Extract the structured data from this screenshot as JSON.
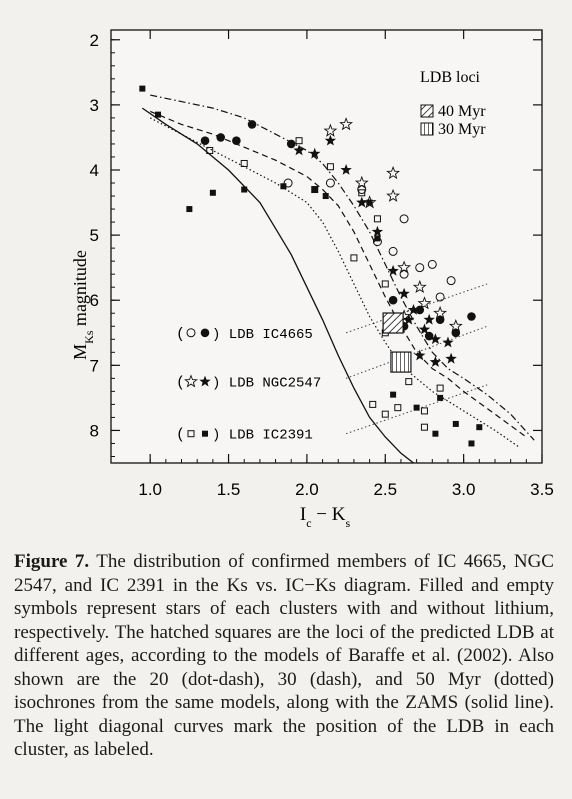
{
  "background_text": [
    "",
    "",
    "",
    "",
    "",
    "",
    "",
    "",
    "",
    "",
    "",
    "",
    "",
    "",
    "",
    ""
  ],
  "chart_data": {
    "type": "scatter",
    "title": "",
    "xlabel": "I_c − K_s",
    "ylabel": "M_Ks magnitude",
    "xlim": [
      0.75,
      3.5
    ],
    "ylim": [
      8.5,
      1.85
    ],
    "y_inverted": true,
    "xticks": [
      "1.0",
      "1.5",
      "2.0",
      "2.5",
      "3.0",
      "3.5"
    ],
    "yticks": [
      "2",
      "3",
      "4",
      "5",
      "6",
      "7",
      "8"
    ],
    "legend_title": "LDB loci",
    "loci": [
      {
        "label": "40 Myr",
        "x": 2.55,
        "y": 6.35,
        "hatch": "diagonal"
      },
      {
        "label": "30 Myr",
        "x": 2.6,
        "y": 6.95,
        "hatch": "grid"
      }
    ],
    "cluster_labels": [
      {
        "label": "(○●) LDB IC4665",
        "y": 6.5
      },
      {
        "label": "(☆★) LDB NGC2547",
        "y": 7.25
      },
      {
        "label": "(□■) LDB IC2391",
        "y": 8.05
      }
    ],
    "series": [
      {
        "name": "IC4665 with Li",
        "symbol": "filled-circle",
        "points": [
          [
            1.35,
            3.55
          ],
          [
            1.45,
            3.5
          ],
          [
            1.55,
            3.55
          ],
          [
            1.65,
            3.3
          ],
          [
            1.9,
            3.6
          ],
          [
            2.55,
            6.0
          ],
          [
            2.62,
            6.4
          ],
          [
            2.72,
            6.15
          ],
          [
            2.85,
            6.3
          ],
          [
            2.95,
            6.5
          ],
          [
            3.05,
            6.25
          ],
          [
            2.78,
            6.55
          ]
        ]
      },
      {
        "name": "IC4665 without Li",
        "symbol": "open-circle",
        "points": [
          [
            1.88,
            4.2
          ],
          [
            2.15,
            4.2
          ],
          [
            2.35,
            4.3
          ],
          [
            2.45,
            5.1
          ],
          [
            2.62,
            4.75
          ],
          [
            2.72,
            5.5
          ],
          [
            2.85,
            5.95
          ],
          [
            2.92,
            5.7
          ],
          [
            2.55,
            5.25
          ],
          [
            2.8,
            5.45
          ],
          [
            2.62,
            5.6
          ]
        ]
      },
      {
        "name": "NGC2547 with Li",
        "symbol": "filled-star",
        "points": [
          [
            1.95,
            3.7
          ],
          [
            2.05,
            3.75
          ],
          [
            2.15,
            3.55
          ],
          [
            2.25,
            4.0
          ],
          [
            2.35,
            4.5
          ],
          [
            2.45,
            4.95
          ],
          [
            2.55,
            5.55
          ],
          [
            2.62,
            5.9
          ],
          [
            2.68,
            6.15
          ],
          [
            2.75,
            6.45
          ],
          [
            2.82,
            6.6
          ],
          [
            2.9,
            6.65
          ],
          [
            2.72,
            6.85
          ],
          [
            2.82,
            6.95
          ],
          [
            2.92,
            6.9
          ],
          [
            2.65,
            6.3
          ],
          [
            2.78,
            6.3
          ]
        ]
      },
      {
        "name": "NGC2547 without Li",
        "symbol": "open-star",
        "points": [
          [
            2.15,
            3.4
          ],
          [
            2.25,
            3.3
          ],
          [
            2.35,
            4.2
          ],
          [
            2.4,
            4.5
          ],
          [
            2.55,
            4.05
          ],
          [
            2.62,
            5.5
          ],
          [
            2.72,
            5.8
          ],
          [
            2.55,
            4.4
          ],
          [
            2.62,
            6.25
          ],
          [
            2.85,
            6.2
          ],
          [
            2.95,
            6.4
          ],
          [
            2.75,
            6.05
          ]
        ]
      },
      {
        "name": "IC2391 with Li",
        "symbol": "filled-square",
        "points": [
          [
            0.95,
            2.75
          ],
          [
            1.05,
            3.15
          ],
          [
            1.25,
            4.6
          ],
          [
            1.4,
            4.35
          ],
          [
            1.6,
            4.3
          ],
          [
            1.85,
            4.25
          ],
          [
            2.05,
            4.3
          ],
          [
            2.12,
            4.4
          ],
          [
            2.4,
            4.5
          ],
          [
            2.45,
            5.05
          ],
          [
            2.55,
            7.45
          ],
          [
            2.7,
            7.65
          ],
          [
            2.85,
            7.5
          ],
          [
            2.95,
            7.9
          ],
          [
            3.05,
            8.2
          ],
          [
            3.1,
            7.95
          ],
          [
            2.82,
            8.05
          ]
        ]
      },
      {
        "name": "IC2391 without Li",
        "symbol": "open-square",
        "points": [
          [
            1.38,
            3.7
          ],
          [
            1.6,
            3.9
          ],
          [
            1.95,
            3.55
          ],
          [
            2.05,
            4.3
          ],
          [
            2.15,
            3.95
          ],
          [
            2.35,
            4.35
          ],
          [
            2.45,
            4.75
          ],
          [
            2.3,
            5.35
          ],
          [
            2.5,
            5.75
          ],
          [
            2.5,
            6.5
          ],
          [
            2.6,
            6.85
          ],
          [
            2.58,
            7.65
          ],
          [
            2.42,
            7.6
          ],
          [
            2.5,
            7.75
          ],
          [
            2.75,
            7.7
          ],
          [
            2.85,
            7.35
          ],
          [
            2.65,
            7.25
          ],
          [
            2.75,
            7.95
          ]
        ]
      }
    ],
    "curves": [
      {
        "name": "20 Myr",
        "style": "dot-dash",
        "points": [
          [
            1.0,
            2.85
          ],
          [
            1.2,
            2.95
          ],
          [
            1.4,
            3.05
          ],
          [
            1.6,
            3.2
          ],
          [
            1.8,
            3.45
          ],
          [
            2.0,
            3.7
          ],
          [
            2.1,
            3.9
          ],
          [
            2.2,
            4.2
          ],
          [
            2.3,
            4.55
          ],
          [
            2.4,
            4.95
          ],
          [
            2.5,
            5.45
          ],
          [
            2.6,
            5.95
          ],
          [
            2.7,
            6.4
          ],
          [
            2.8,
            6.8
          ],
          [
            2.9,
            7.05
          ],
          [
            3.0,
            7.2
          ],
          [
            3.15,
            7.45
          ],
          [
            3.3,
            7.75
          ],
          [
            3.45,
            8.15
          ]
        ]
      },
      {
        "name": "30 Myr",
        "style": "dash",
        "points": [
          [
            1.0,
            3.1
          ],
          [
            1.2,
            3.3
          ],
          [
            1.4,
            3.45
          ],
          [
            1.6,
            3.65
          ],
          [
            1.8,
            3.85
          ],
          [
            2.0,
            4.1
          ],
          [
            2.1,
            4.3
          ],
          [
            2.2,
            4.55
          ],
          [
            2.3,
            4.95
          ],
          [
            2.4,
            5.45
          ],
          [
            2.5,
            5.95
          ],
          [
            2.6,
            6.4
          ],
          [
            2.7,
            6.8
          ],
          [
            2.8,
            7.05
          ],
          [
            2.9,
            7.2
          ],
          [
            3.0,
            7.4
          ],
          [
            3.2,
            7.75
          ],
          [
            3.4,
            8.1
          ]
        ]
      },
      {
        "name": "50 Myr",
        "style": "dotted",
        "points": [
          [
            1.0,
            3.2
          ],
          [
            1.2,
            3.45
          ],
          [
            1.4,
            3.7
          ],
          [
            1.6,
            3.95
          ],
          [
            1.8,
            4.2
          ],
          [
            2.0,
            4.5
          ],
          [
            2.1,
            4.8
          ],
          [
            2.2,
            5.25
          ],
          [
            2.3,
            5.75
          ],
          [
            2.4,
            6.25
          ],
          [
            2.5,
            6.65
          ],
          [
            2.6,
            7.0
          ],
          [
            2.7,
            7.2
          ],
          [
            2.8,
            7.4
          ],
          [
            2.9,
            7.55
          ],
          [
            3.0,
            7.7
          ],
          [
            3.2,
            8.0
          ],
          [
            3.35,
            8.25
          ]
        ]
      },
      {
        "name": "ZAMS",
        "style": "solid",
        "points": [
          [
            0.95,
            3.05
          ],
          [
            1.1,
            3.3
          ],
          [
            1.3,
            3.6
          ],
          [
            1.5,
            4.0
          ],
          [
            1.7,
            4.5
          ],
          [
            1.8,
            4.9
          ],
          [
            1.9,
            5.3
          ],
          [
            2.0,
            5.8
          ],
          [
            2.1,
            6.3
          ],
          [
            2.2,
            6.85
          ],
          [
            2.3,
            7.35
          ],
          [
            2.4,
            7.8
          ],
          [
            2.5,
            8.1
          ],
          [
            2.6,
            8.35
          ],
          [
            2.68,
            8.5
          ]
        ]
      }
    ],
    "ldb_lines": [
      {
        "cluster": "IC4665",
        "points": [
          [
            2.25,
            6.5
          ],
          [
            3.15,
            5.75
          ]
        ]
      },
      {
        "cluster": "NGC2547",
        "points": [
          [
            2.25,
            7.2
          ],
          [
            3.15,
            6.4
          ]
        ]
      },
      {
        "cluster": "IC2391",
        "points": [
          [
            2.25,
            8.05
          ],
          [
            3.15,
            7.3
          ]
        ]
      }
    ]
  },
  "caption": {
    "figure_label": "Figure 7.",
    "text": "The distribution of confirmed members of IC 4665, NGC 2547, and IC 2391 in the Ks vs. IC−Ks diagram. Filled and empty symbols represent stars of each clusters with and without lithium, respectively. The hatched squares are the loci of the predicted LDB at different ages, according to the models of Baraffe et al. (2002). Also shown are the 20 (dot-dash), 30 (dash), and 50 Myr (dotted) isochrones from the same models, along with the ZAMS (solid line). The light diagonal curves mark the position of the LDB in each cluster, as labeled."
  }
}
